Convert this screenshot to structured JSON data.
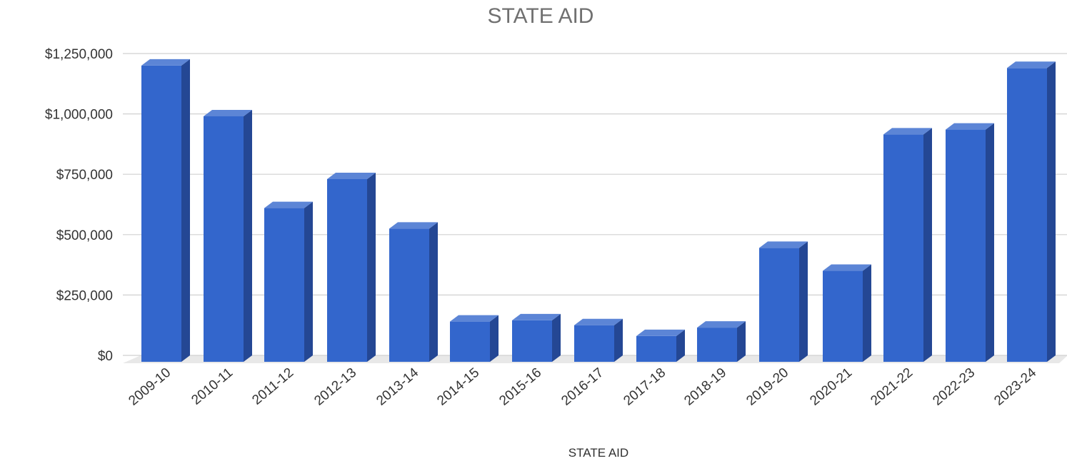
{
  "chart_data": {
    "type": "bar",
    "title": "STATE AID",
    "xlabel": "STATE AID",
    "ylabel": "",
    "categories": [
      "2009-10",
      "2010-11",
      "2011-12",
      "2012-13",
      "2013-14",
      "2014-15",
      "2015-16",
      "2016-17",
      "2017-18",
      "2018-19",
      "2019-20",
      "2020-21",
      "2021-22",
      "2022-23",
      "2023-24"
    ],
    "series": [
      {
        "values": [
          1200000,
          990000,
          610000,
          730000,
          525000,
          140000,
          145000,
          125000,
          80000,
          115000,
          445000,
          350000,
          915000,
          935000,
          1190000
        ]
      }
    ],
    "ylim": [
      0,
      1250000
    ],
    "yticks": [
      0,
      250000,
      500000,
      750000,
      1000000,
      1250000
    ],
    "ytick_labels": [
      "$0",
      "$250,000",
      "$500,000",
      "$750,000",
      "$1,000,000",
      "$1,250,000"
    ],
    "grid": true,
    "legend": "none",
    "style": "3d-column"
  },
  "colors": {
    "bar_front": "#3366cc",
    "bar_side": "#244794",
    "bar_top": "#5c85d6",
    "floor": "#e8e8e8",
    "grid": "#d0d0d0"
  }
}
